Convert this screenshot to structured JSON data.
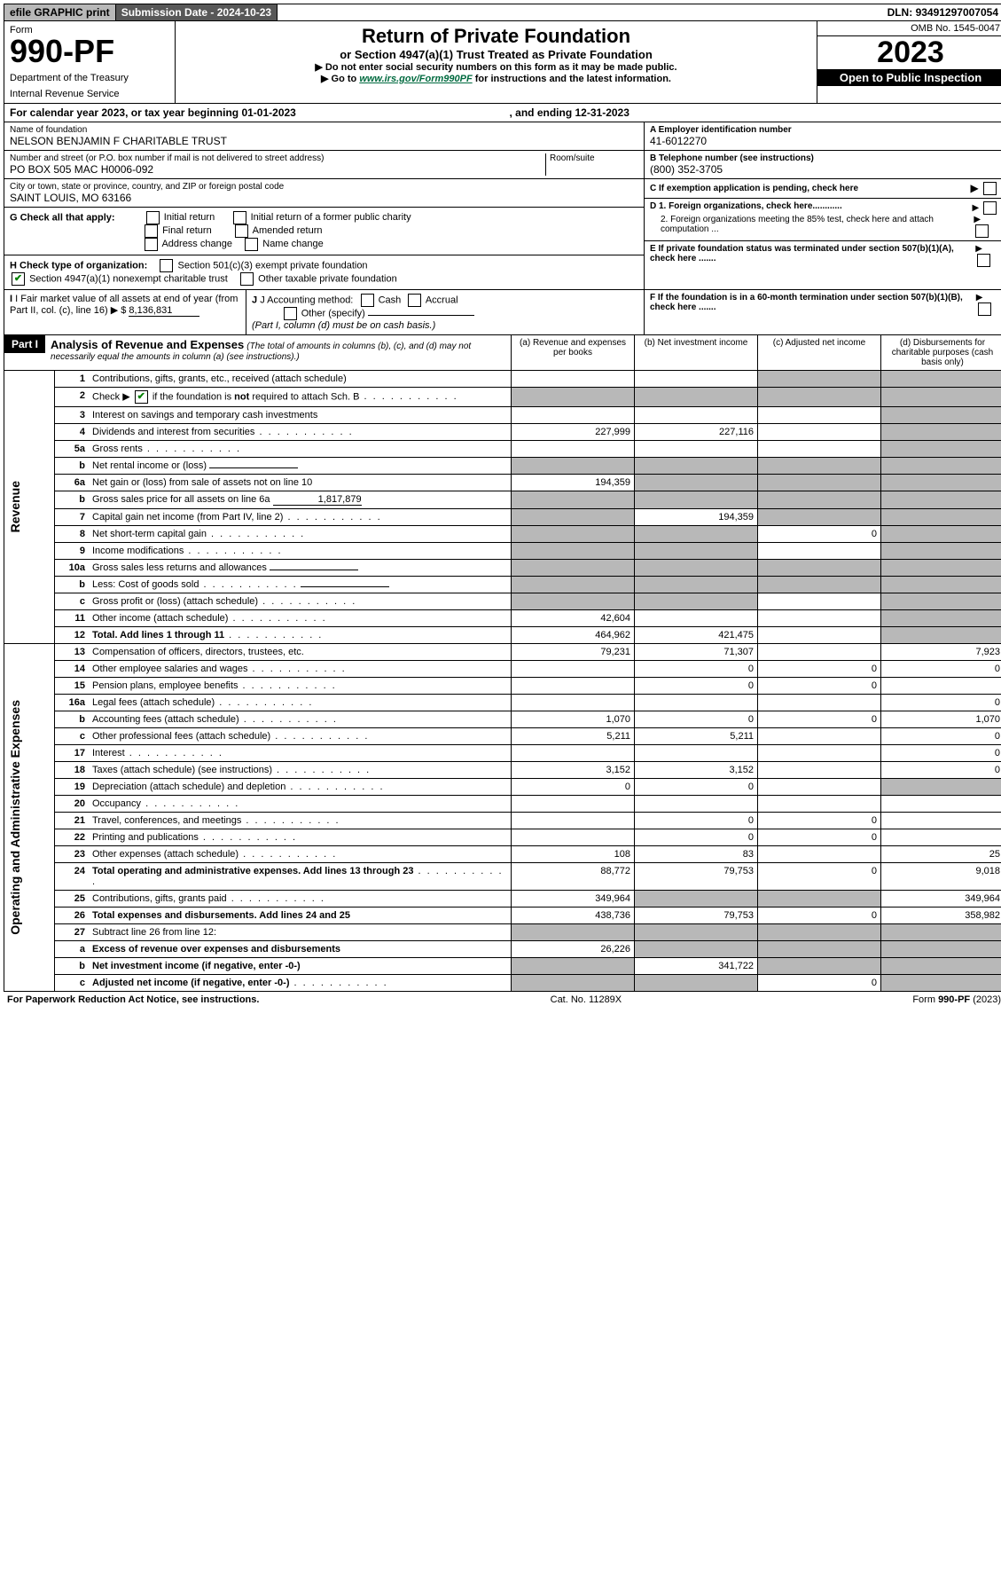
{
  "topbar": {
    "efile": "efile GRAPHIC print",
    "subdate_label": "Submission Date - ",
    "subdate_value": "2024-10-23",
    "dln_label": "DLN: ",
    "dln_value": "93491297007054"
  },
  "header": {
    "form_label": "Form",
    "form_no": "990-PF",
    "dept1": "Department of the Treasury",
    "dept2": "Internal Revenue Service",
    "title": "Return of Private Foundation",
    "subtitle": "or Section 4947(a)(1) Trust Treated as Private Foundation",
    "note1": "▶ Do not enter social security numbers on this form as it may be made public.",
    "note2_pre": "▶ Go to ",
    "note2_link": "www.irs.gov/Form990PF",
    "note2_post": " for instructions and the latest information.",
    "omb": "OMB No. 1545-0047",
    "year": "2023",
    "openpub": "Open to Public Inspection"
  },
  "calyear": {
    "text_pre": "For calendar year 2023, or tax year beginning ",
    "begin": "01-01-2023",
    "text_mid": ", and ending ",
    "end": "12-31-2023"
  },
  "id": {
    "name_label": "Name of foundation",
    "name": "NELSON BENJAMIN F CHARITABLE TRUST",
    "addr_label": "Number and street (or P.O. box number if mail is not delivered to street address)",
    "addr": "PO BOX 505 MAC H0006-092",
    "room_label": "Room/suite",
    "city_label": "City or town, state or province, country, and ZIP or foreign postal code",
    "city": "SAINT LOUIS, MO  63166",
    "ein_label": "A Employer identification number",
    "ein": "41-6012270",
    "phone_label": "B Telephone number (see instructions)",
    "phone": "(800) 352-3705",
    "c_label": "C If exemption application is pending, check here",
    "d1_label": "D 1. Foreign organizations, check here............",
    "d2_label": "2. Foreign organizations meeting the 85% test, check here and attach computation ...",
    "e_label": "E If private foundation status was terminated under section 507(b)(1)(A), check here .......",
    "f_label": "F If the foundation is in a 60-month termination under section 507(b)(1)(B), check here .......",
    "g_label": "G Check all that apply:",
    "g_opts": [
      "Initial return",
      "Initial return of a former public charity",
      "Final return",
      "Amended return",
      "Address change",
      "Name change"
    ],
    "h_label": "H Check type of organization:",
    "h_opts": [
      "Section 501(c)(3) exempt private foundation",
      "Section 4947(a)(1) nonexempt charitable trust",
      "Other taxable private foundation"
    ],
    "i_label": "I Fair market value of all assets at end of year (from Part II, col. (c), line 16)",
    "i_value": "8,136,831",
    "j_label": "J Accounting method:",
    "j_opts": [
      "Cash",
      "Accrual",
      "Other (specify)"
    ],
    "j_note": "(Part I, column (d) must be on cash basis.)"
  },
  "part1": {
    "label": "Part I",
    "title": "Analysis of Revenue and Expenses",
    "note": "(The total of amounts in columns (b), (c), and (d) may not necessarily equal the amounts in column (a) (see instructions).)",
    "col_a": "(a)  Revenue and expenses per books",
    "col_b": "(b)  Net investment income",
    "col_c": "(c)  Adjusted net income",
    "col_d": "(d)  Disbursements for charitable purposes (cash basis only)"
  },
  "sides": {
    "rev": "Revenue",
    "exp": "Operating and Administrative Expenses"
  },
  "lines": [
    {
      "n": "1",
      "d": "Contributions, gifts, grants, etc., received (attach schedule)",
      "a": "",
      "b": "",
      "c": "g",
      "dd": "g"
    },
    {
      "n": "2",
      "d": "Check ▶ ☑ if the foundation is not required to attach Sch. B",
      "dots": true,
      "a": "g",
      "b": "g",
      "c": "g",
      "dd": "g",
      "checked": true
    },
    {
      "n": "3",
      "d": "Interest on savings and temporary cash investments",
      "a": "",
      "b": "",
      "c": "",
      "dd": "g"
    },
    {
      "n": "4",
      "d": "Dividends and interest from securities",
      "dots": true,
      "a": "227,999",
      "b": "227,116",
      "c": "",
      "dd": "g"
    },
    {
      "n": "5a",
      "d": "Gross rents",
      "dots": true,
      "a": "",
      "b": "",
      "c": "",
      "dd": "g"
    },
    {
      "n": "b",
      "d": "Net rental income or (loss)",
      "inline": true,
      "a": "g",
      "b": "g",
      "c": "g",
      "dd": "g"
    },
    {
      "n": "6a",
      "d": "Net gain or (loss) from sale of assets not on line 10",
      "a": "194,359",
      "b": "g",
      "c": "g",
      "dd": "g"
    },
    {
      "n": "b",
      "d": "Gross sales price for all assets on line 6a",
      "inline": true,
      "iv": "1,817,879",
      "a": "g",
      "b": "g",
      "c": "g",
      "dd": "g"
    },
    {
      "n": "7",
      "d": "Capital gain net income (from Part IV, line 2)",
      "dots": true,
      "a": "g",
      "b": "194,359",
      "c": "g",
      "dd": "g"
    },
    {
      "n": "8",
      "d": "Net short-term capital gain",
      "dots": true,
      "a": "g",
      "b": "g",
      "c": "0",
      "dd": "g"
    },
    {
      "n": "9",
      "d": "Income modifications",
      "dots": true,
      "a": "g",
      "b": "g",
      "c": "",
      "dd": "g"
    },
    {
      "n": "10a",
      "d": "Gross sales less returns and allowances",
      "inline": true,
      "a": "g",
      "b": "g",
      "c": "g",
      "dd": "g"
    },
    {
      "n": "b",
      "d": "Less: Cost of goods sold",
      "dots": true,
      "inline": true,
      "a": "g",
      "b": "g",
      "c": "g",
      "dd": "g"
    },
    {
      "n": "c",
      "d": "Gross profit or (loss) (attach schedule)",
      "dots": true,
      "a": "g",
      "b": "g",
      "c": "",
      "dd": "g"
    },
    {
      "n": "11",
      "d": "Other income (attach schedule)",
      "dots": true,
      "a": "42,604",
      "b": "",
      "c": "",
      "dd": "g"
    },
    {
      "n": "12",
      "d": "Total. Add lines 1 through 11",
      "dots": true,
      "bold": true,
      "a": "464,962",
      "b": "421,475",
      "c": "",
      "dd": "g"
    },
    {
      "n": "13",
      "d": "Compensation of officers, directors, trustees, etc.",
      "a": "79,231",
      "b": "71,307",
      "c": "",
      "dd": "7,923"
    },
    {
      "n": "14",
      "d": "Other employee salaries and wages",
      "dots": true,
      "a": "",
      "b": "0",
      "c": "0",
      "dd": "0"
    },
    {
      "n": "15",
      "d": "Pension plans, employee benefits",
      "dots": true,
      "a": "",
      "b": "0",
      "c": "0",
      "dd": ""
    },
    {
      "n": "16a",
      "d": "Legal fees (attach schedule)",
      "dots": true,
      "a": "",
      "b": "",
      "c": "",
      "dd": "0"
    },
    {
      "n": "b",
      "d": "Accounting fees (attach schedule)",
      "dots": true,
      "a": "1,070",
      "b": "0",
      "c": "0",
      "dd": "1,070"
    },
    {
      "n": "c",
      "d": "Other professional fees (attach schedule)",
      "dots": true,
      "a": "5,211",
      "b": "5,211",
      "c": "",
      "dd": "0"
    },
    {
      "n": "17",
      "d": "Interest",
      "dots": true,
      "a": "",
      "b": "",
      "c": "",
      "dd": "0"
    },
    {
      "n": "18",
      "d": "Taxes (attach schedule) (see instructions)",
      "dots": true,
      "a": "3,152",
      "b": "3,152",
      "c": "",
      "dd": "0"
    },
    {
      "n": "19",
      "d": "Depreciation (attach schedule) and depletion",
      "dots": true,
      "a": "0",
      "b": "0",
      "c": "",
      "dd": "g"
    },
    {
      "n": "20",
      "d": "Occupancy",
      "dots": true,
      "a": "",
      "b": "",
      "c": "",
      "dd": ""
    },
    {
      "n": "21",
      "d": "Travel, conferences, and meetings",
      "dots": true,
      "a": "",
      "b": "0",
      "c": "0",
      "dd": ""
    },
    {
      "n": "22",
      "d": "Printing and publications",
      "dots": true,
      "a": "",
      "b": "0",
      "c": "0",
      "dd": ""
    },
    {
      "n": "23",
      "d": "Other expenses (attach schedule)",
      "dots": true,
      "a": "108",
      "b": "83",
      "c": "",
      "dd": "25"
    },
    {
      "n": "24",
      "d": "Total operating and administrative expenses. Add lines 13 through 23",
      "dots": true,
      "bold": true,
      "a": "88,772",
      "b": "79,753",
      "c": "0",
      "dd": "9,018"
    },
    {
      "n": "25",
      "d": "Contributions, gifts, grants paid",
      "dots": true,
      "a": "349,964",
      "b": "g",
      "c": "g",
      "dd": "349,964"
    },
    {
      "n": "26",
      "d": "Total expenses and disbursements. Add lines 24 and 25",
      "bold": true,
      "a": "438,736",
      "b": "79,753",
      "c": "0",
      "dd": "358,982"
    },
    {
      "n": "27",
      "d": "Subtract line 26 from line 12:",
      "a": "g",
      "b": "g",
      "c": "g",
      "dd": "g"
    },
    {
      "n": "a",
      "d": "Excess of revenue over expenses and disbursements",
      "bold": true,
      "a": "26,226",
      "b": "g",
      "c": "g",
      "dd": "g"
    },
    {
      "n": "b",
      "d": "Net investment income (if negative, enter -0-)",
      "bold": true,
      "a": "g",
      "b": "341,722",
      "c": "g",
      "dd": "g"
    },
    {
      "n": "c",
      "d": "Adjusted net income (if negative, enter -0-)",
      "bold": true,
      "dots": true,
      "a": "g",
      "b": "g",
      "c": "0",
      "dd": "g"
    }
  ],
  "footer": {
    "left": "For Paperwork Reduction Act Notice, see instructions.",
    "mid": "Cat. No. 11289X",
    "right": "Form 990-PF (2023)"
  }
}
